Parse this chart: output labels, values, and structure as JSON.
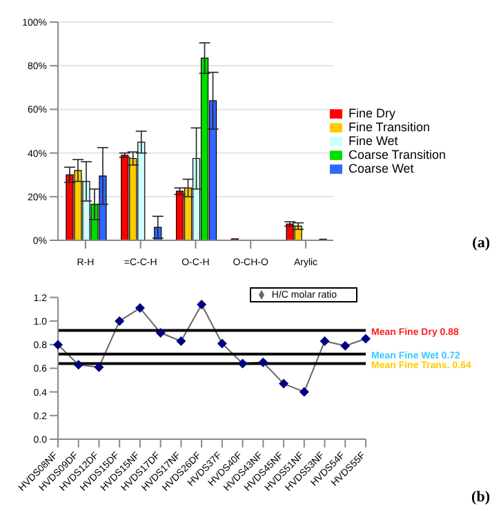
{
  "chart_data": [
    {
      "type": "bar",
      "categories": [
        "R-H",
        "=C-C-H",
        "O-C-H",
        "O-CH-O",
        "Arylic"
      ],
      "series": [
        {
          "name": "Fine Dry",
          "color": "#ff0000",
          "values": [
            30,
            39,
            22.5,
            0.7,
            7.5
          ],
          "errors": [
            3.5,
            1,
            1.5,
            null,
            1
          ]
        },
        {
          "name": "Fine Transition",
          "color": "#ffcc00",
          "values": [
            32,
            37.5,
            24,
            null,
            6.5
          ],
          "errors": [
            5,
            3,
            4,
            null,
            1.5
          ]
        },
        {
          "name": "Fine Wet",
          "color": "#ccffff",
          "values": [
            27,
            45,
            37.5,
            null,
            null
          ],
          "errors": [
            9,
            5,
            14,
            null,
            null
          ]
        },
        {
          "name": "Coarse Transition",
          "color": "#00dd00",
          "values": [
            16.5,
            null,
            83.5,
            null,
            null
          ],
          "errors": [
            7,
            null,
            7,
            null,
            null
          ]
        },
        {
          "name": "Coarse Wet",
          "color": "#3366ff",
          "values": [
            29.5,
            6,
            64,
            null,
            0.5
          ],
          "errors": [
            13,
            5,
            13,
            null,
            null
          ]
        }
      ],
      "ylim": [
        0,
        100
      ],
      "yticks": [
        {
          "value": 0,
          "label": "0%"
        },
        {
          "value": 20,
          "label": "20%"
        },
        {
          "value": 40,
          "label": "40%"
        },
        {
          "value": 60,
          "label": "60%"
        },
        {
          "value": 80,
          "label": "80%"
        },
        {
          "value": 100,
          "label": "100%"
        }
      ],
      "grid": "y",
      "legend": "right",
      "annotations": [
        "(a)"
      ]
    },
    {
      "type": "line",
      "categories": [
        "HVDS08NF",
        "HVDS09DF",
        "HVDS12DF",
        "HVDS15DF",
        "HVDS15NF",
        "HVDS17DF",
        "HVDS17NF",
        "HVDS26DF",
        "HVDS37F",
        "HVDS40F",
        "HVDS43NF",
        "HVDS45NF",
        "HVDS51NF",
        "HVDS53NF",
        "HVDS54F",
        "HVDS55F"
      ],
      "series": [
        {
          "name": "H/C molar ratio",
          "color": "#000080",
          "values": [
            0.8,
            0.63,
            0.61,
            1.0,
            1.11,
            0.9,
            0.83,
            1.14,
            0.81,
            0.64,
            0.65,
            0.47,
            0.4,
            0.83,
            0.79,
            0.85
          ]
        }
      ],
      "ylim": [
        0,
        1.2
      ],
      "yticks": [
        {
          "value": 0,
          "label": "0.0"
        },
        {
          "value": 0.2,
          "label": "0.2"
        },
        {
          "value": 0.4,
          "label": "0.4"
        },
        {
          "value": 0.6,
          "label": "0.6"
        },
        {
          "value": 0.8,
          "label": "0.8"
        },
        {
          "value": 1,
          "label": "1.0"
        },
        {
          "value": 1.2,
          "label": "1.2"
        }
      ],
      "marker": "diamond",
      "legend": "top right",
      "ref_lines": [
        {
          "axis": "y",
          "value": 0.92,
          "label": "Mean Fine Dry 0.88",
          "color": "#000000"
        },
        {
          "axis": "y",
          "value": 0.72,
          "label": "Mean Fine Wet 0.72",
          "color": "#000000"
        },
        {
          "axis": "y",
          "value": 0.64,
          "label": "Mean Fine Trans. 0.64",
          "color": "#000000"
        }
      ],
      "annotations": [
        "(b)"
      ]
    }
  ]
}
